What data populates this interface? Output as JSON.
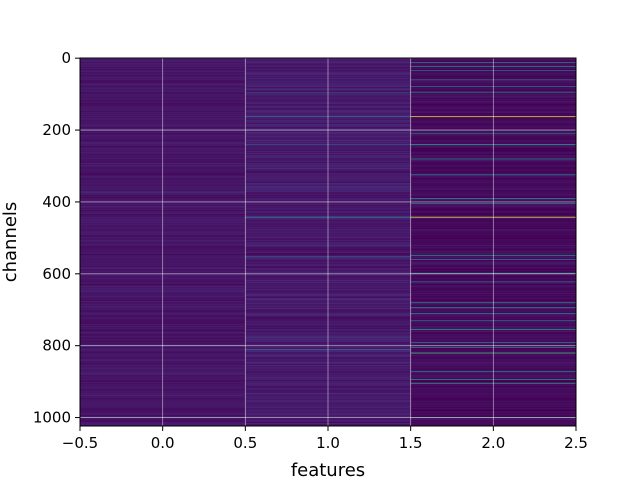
{
  "chart_data": {
    "type": "heatmap",
    "title": "",
    "xlabel": "features",
    "ylabel": "channels",
    "xlim": [
      -0.5,
      2.5
    ],
    "ylim": [
      1023.5,
      -0.5
    ],
    "x_ticks": [
      "−0.5",
      "0.0",
      "0.5",
      "1.0",
      "1.5",
      "2.0",
      "2.5"
    ],
    "y_ticks": [
      "0",
      "200",
      "400",
      "600",
      "800",
      "1000"
    ],
    "x_tick_values": [
      -0.5,
      0.0,
      0.5,
      1.0,
      1.5,
      2.0,
      2.5
    ],
    "y_tick_values": [
      0,
      200,
      400,
      600,
      800,
      1000
    ],
    "grid": true,
    "colormap": "viridis",
    "columns": [
      0,
      1,
      2
    ],
    "rows": 1024,
    "column_base_level": [
      0.07,
      0.09,
      0.03
    ],
    "column_noise_level": [
      0.04,
      0.06,
      0.05
    ],
    "highlight_rows": [
      {
        "column": 0,
        "row": 372,
        "level": 0.22
      },
      {
        "column": 0,
        "row": 800,
        "level": 0.28
      },
      {
        "column": 0,
        "row": 1000,
        "level": 0.25
      },
      {
        "column": 1,
        "row": 96,
        "level": 0.3
      },
      {
        "column": 1,
        "row": 162,
        "level": 0.35
      },
      {
        "column": 1,
        "row": 240,
        "level": 0.3
      },
      {
        "column": 1,
        "row": 442,
        "level": 0.45
      },
      {
        "column": 1,
        "row": 552,
        "level": 0.3
      },
      {
        "column": 1,
        "row": 810,
        "level": 0.35
      },
      {
        "column": 2,
        "row": 12,
        "level": 0.45
      },
      {
        "column": 2,
        "row": 22,
        "level": 0.55
      },
      {
        "column": 2,
        "row": 35,
        "level": 0.4
      },
      {
        "column": 2,
        "row": 60,
        "level": 0.45
      },
      {
        "column": 2,
        "row": 78,
        "level": 0.4
      },
      {
        "column": 2,
        "row": 95,
        "level": 0.5
      },
      {
        "column": 2,
        "row": 162,
        "level": 0.95
      },
      {
        "column": 2,
        "row": 210,
        "level": 0.45
      },
      {
        "column": 2,
        "row": 240,
        "level": 0.6
      },
      {
        "column": 2,
        "row": 280,
        "level": 0.5
      },
      {
        "column": 2,
        "row": 325,
        "level": 0.45
      },
      {
        "column": 2,
        "row": 390,
        "level": 0.5
      },
      {
        "column": 2,
        "row": 405,
        "level": 0.45
      },
      {
        "column": 2,
        "row": 442,
        "level": 0.98
      },
      {
        "column": 2,
        "row": 548,
        "level": 0.55
      },
      {
        "column": 2,
        "row": 560,
        "level": 0.45
      },
      {
        "column": 2,
        "row": 598,
        "level": 0.5
      },
      {
        "column": 2,
        "row": 622,
        "level": 0.4
      },
      {
        "column": 2,
        "row": 680,
        "level": 0.5
      },
      {
        "column": 2,
        "row": 695,
        "level": 0.55
      },
      {
        "column": 2,
        "row": 710,
        "level": 0.45
      },
      {
        "column": 2,
        "row": 730,
        "level": 0.4
      },
      {
        "column": 2,
        "row": 755,
        "level": 0.55
      },
      {
        "column": 2,
        "row": 790,
        "level": 0.45
      },
      {
        "column": 2,
        "row": 805,
        "level": 0.5
      },
      {
        "column": 2,
        "row": 820,
        "level": 0.7
      },
      {
        "column": 2,
        "row": 872,
        "level": 0.5
      },
      {
        "column": 2,
        "row": 895,
        "level": 0.55
      },
      {
        "column": 2,
        "row": 905,
        "level": 0.6
      },
      {
        "column": 2,
        "row": 1000,
        "level": 0.45
      }
    ]
  }
}
